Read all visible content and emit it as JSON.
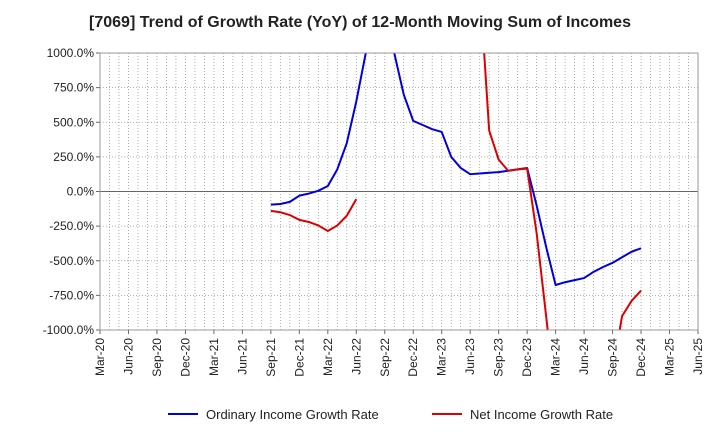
{
  "chart_data": {
    "type": "line",
    "title": "[7069]  Trend of Growth Rate (YoY) of 12-Month Moving Sum of Incomes",
    "xlabel": "",
    "ylabel": "",
    "ylim": [
      -1000,
      1000
    ],
    "y_ticks": [
      "1000.0%",
      "750.0%",
      "500.0%",
      "250.0%",
      "0.0%",
      "-250.0%",
      "-500.0%",
      "-750.0%",
      "-1000.0%"
    ],
    "y_tick_values": [
      1000,
      750,
      500,
      250,
      0,
      -250,
      -500,
      -750,
      -1000
    ],
    "x_ticks": [
      "Mar-20",
      "Jun-20",
      "Sep-20",
      "Dec-20",
      "Mar-21",
      "Jun-21",
      "Sep-21",
      "Dec-21",
      "Mar-22",
      "Jun-22",
      "Sep-22",
      "Dec-22",
      "Mar-23",
      "Jun-23",
      "Sep-23",
      "Dec-23",
      "Mar-24",
      "Jun-24",
      "Sep-24",
      "Dec-24",
      "Mar-25",
      "Jun-25"
    ],
    "x_range": [
      "2020-03",
      "2025-06"
    ],
    "grid": true,
    "legend_position": "bottom",
    "series": [
      {
        "name": "Ordinary Income Growth Rate",
        "color": "#0000dd",
        "points": [
          [
            "2021-09",
            -95
          ],
          [
            "2021-10",
            -90
          ],
          [
            "2021-11",
            -75
          ],
          [
            "2021-12",
            -30
          ],
          [
            "2022-01",
            -15
          ],
          [
            "2022-02",
            5
          ],
          [
            "2022-03",
            40
          ],
          [
            "2022-04",
            160
          ],
          [
            "2022-05",
            350
          ],
          [
            "2022-06",
            650
          ],
          [
            "2022-07",
            1000
          ],
          [
            "2022-08",
            1600
          ],
          [
            "2022-09",
            1600
          ],
          [
            "2022-10",
            1000
          ],
          [
            "2022-11",
            700
          ],
          [
            "2022-12",
            510
          ],
          [
            "2023-01",
            480
          ],
          [
            "2023-02",
            450
          ],
          [
            "2023-03",
            430
          ],
          [
            "2023-04",
            250
          ],
          [
            "2023-05",
            170
          ],
          [
            "2023-06",
            125
          ],
          [
            "2023-07",
            130
          ],
          [
            "2023-08",
            135
          ],
          [
            "2023-09",
            140
          ],
          [
            "2023-10",
            150
          ],
          [
            "2023-11",
            160
          ],
          [
            "2023-12",
            170
          ],
          [
            "2024-01",
            -100
          ],
          [
            "2024-02",
            -400
          ],
          [
            "2024-03",
            -675
          ],
          [
            "2024-04",
            -655
          ],
          [
            "2024-05",
            -640
          ],
          [
            "2024-06",
            -625
          ],
          [
            "2024-07",
            -580
          ],
          [
            "2024-08",
            -545
          ],
          [
            "2024-09",
            -515
          ],
          [
            "2024-10",
            -475
          ],
          [
            "2024-11",
            -435
          ],
          [
            "2024-12",
            -410
          ]
        ]
      },
      {
        "name": "Net Income Growth Rate",
        "color": "#dd0000",
        "segments": [
          [
            [
              "2021-09",
              -140
            ],
            [
              "2021-10",
              -150
            ],
            [
              "2021-11",
              -170
            ],
            [
              "2021-12",
              -205
            ],
            [
              "2022-01",
              -220
            ],
            [
              "2022-02",
              -245
            ],
            [
              "2022-03",
              -285
            ],
            [
              "2022-04",
              -245
            ],
            [
              "2022-05",
              -175
            ],
            [
              "2022-06",
              -55
            ]
          ],
          [
            [
              "2023-07",
              1500
            ],
            [
              "2023-08",
              440
            ],
            [
              "2023-09",
              230
            ],
            [
              "2023-10",
              150
            ],
            [
              "2023-11",
              160
            ],
            [
              "2023-12",
              165
            ],
            [
              "2024-01",
              -300
            ],
            [
              "2024-02",
              -900
            ],
            [
              "2024-03",
              -1500
            ]
          ],
          [
            [
              "2024-09",
              -1300
            ],
            [
              "2024-10",
              -900
            ],
            [
              "2024-11",
              -790
            ],
            [
              "2024-12",
              -715
            ]
          ]
        ]
      }
    ]
  }
}
